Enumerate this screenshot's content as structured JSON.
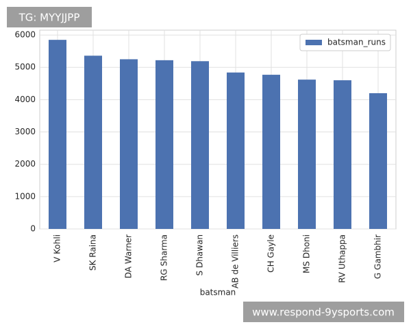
{
  "chart_data": {
    "type": "bar",
    "x_label": "batsman",
    "categories": [
      "V Kohli",
      "SK Raina",
      "DA Warner",
      "RG Sharma",
      "S Dhawan",
      "AB de Villiers",
      "CH Gayle",
      "MS Dhoni",
      "RV Uthappa",
      "G Gambhir"
    ],
    "series": [
      {
        "name": "batsman_runs",
        "color": "#4c72b0",
        "values": [
          5850,
          5360,
          5250,
          5220,
          5190,
          4840,
          4770,
          4620,
          4600,
          4200
        ]
      }
    ],
    "ylim": [
      0,
      6150
    ],
    "yticks": [
      0,
      1000,
      2000,
      3000,
      4000,
      5000,
      6000
    ],
    "grid": true,
    "legend": "upper-right"
  },
  "watermarks": [
    "TG: MYYJJPP",
    "www.respond-9ysports.com"
  ]
}
